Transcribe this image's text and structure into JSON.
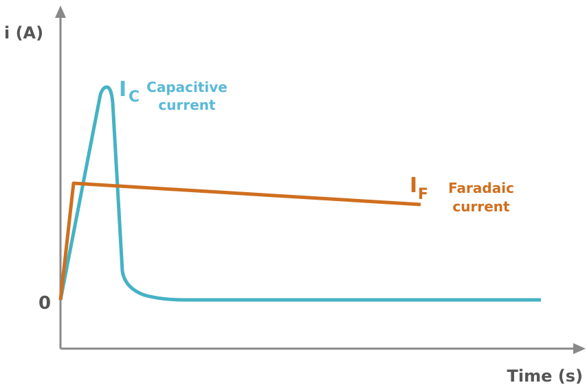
{
  "axes": {
    "y_label": "i (A)",
    "x_label": "Time (s)",
    "origin_label": "0"
  },
  "capacitive": {
    "symbol": "I",
    "subscript": "C",
    "lines": [
      "Capacitive",
      "current"
    ]
  },
  "faradaic": {
    "symbol": "I",
    "subscript": "F",
    "lines": [
      "Faradaic",
      "current"
    ]
  }
}
